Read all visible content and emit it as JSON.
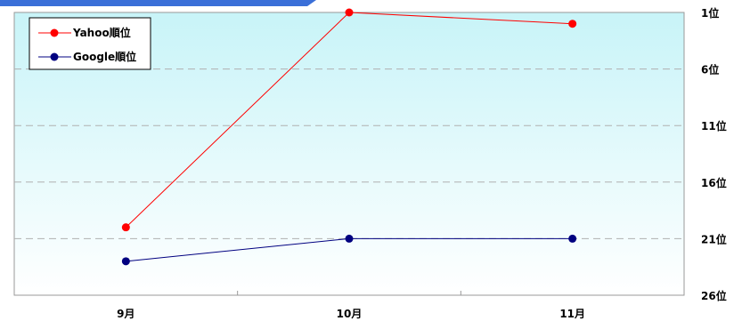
{
  "chart_data": {
    "type": "line",
    "categories": [
      "9月",
      "10月",
      "11月"
    ],
    "series": [
      {
        "name": "Yahoo順位",
        "values": [
          20,
          1,
          2
        ],
        "color": "#ff0000"
      },
      {
        "name": "Google順位",
        "values": [
          23,
          21,
          21
        ],
        "color": "#000080"
      }
    ],
    "y_axis": {
      "reversed": true,
      "range": [
        1,
        26
      ],
      "ticks": [
        1,
        6,
        11,
        16,
        21,
        26
      ],
      "tick_labels": [
        "1位",
        "6位",
        "11位",
        "16位",
        "21位",
        "26位"
      ],
      "position": "right"
    },
    "grid": "dashed horizontal",
    "legend": "top-left",
    "title": "",
    "xlabel": "",
    "ylabel": ""
  },
  "colors": {
    "plot_bg_top": "#c8f4f8",
    "plot_bg_bottom": "#ffffff",
    "header_bar": "#3a6fd8"
  }
}
